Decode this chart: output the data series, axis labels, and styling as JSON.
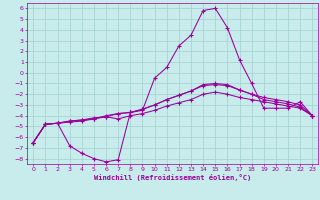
{
  "background_color": "#c8ecec",
  "grid_color": "#aad4d4",
  "line_color": "#990099",
  "marker": "+",
  "xlabel": "Windchill (Refroidissement éolien,°C)",
  "xlim": [
    -0.5,
    23.5
  ],
  "ylim": [
    -8.5,
    6.5
  ],
  "xticks": [
    0,
    1,
    2,
    3,
    4,
    5,
    6,
    7,
    8,
    9,
    10,
    11,
    12,
    13,
    14,
    15,
    16,
    17,
    18,
    19,
    20,
    21,
    22,
    23
  ],
  "yticks": [
    6,
    5,
    4,
    3,
    2,
    1,
    0,
    -1,
    -2,
    -3,
    -4,
    -5,
    -6,
    -7,
    -8
  ],
  "line1_x": [
    0,
    1,
    2,
    3,
    4,
    5,
    6,
    7,
    8,
    9,
    10,
    11,
    12,
    13,
    14,
    15,
    16,
    17,
    18,
    19,
    20,
    21,
    22,
    23
  ],
  "line1_y": [
    -6.5,
    -4.8,
    -4.7,
    -6.8,
    -7.5,
    -8.0,
    -8.3,
    -8.1,
    -3.7,
    -3.5,
    -0.5,
    0.5,
    2.5,
    3.5,
    5.8,
    6.0,
    4.2,
    1.2,
    -1.0,
    -3.3,
    -3.3,
    -3.3,
    -2.7,
    -4.0
  ],
  "line2_x": [
    0,
    1,
    2,
    3,
    4,
    5,
    6,
    7,
    8,
    9,
    10,
    11,
    12,
    13,
    14,
    15,
    16,
    17,
    18,
    19,
    20,
    21,
    22,
    23
  ],
  "line2_y": [
    -6.5,
    -4.8,
    -4.7,
    -4.6,
    -4.5,
    -4.3,
    -4.0,
    -3.8,
    -3.7,
    -3.4,
    -3.0,
    -2.5,
    -2.1,
    -1.7,
    -1.2,
    -1.1,
    -1.2,
    -1.6,
    -2.0,
    -2.3,
    -2.5,
    -2.7,
    -3.0,
    -4.0
  ],
  "line3_x": [
    0,
    1,
    2,
    3,
    4,
    5,
    6,
    7,
    8,
    9,
    10,
    11,
    12,
    13,
    14,
    15,
    16,
    17,
    18,
    19,
    20,
    21,
    22,
    23
  ],
  "line3_y": [
    -6.5,
    -4.8,
    -4.7,
    -4.5,
    -4.4,
    -4.3,
    -4.1,
    -3.8,
    -3.7,
    -3.4,
    -3.0,
    -2.5,
    -2.1,
    -1.7,
    -1.1,
    -1.0,
    -1.1,
    -1.6,
    -2.0,
    -2.5,
    -2.7,
    -2.9,
    -3.2,
    -4.0
  ],
  "line4_x": [
    0,
    1,
    2,
    3,
    4,
    5,
    6,
    7,
    8,
    9,
    10,
    11,
    12,
    13,
    14,
    15,
    16,
    17,
    18,
    19,
    20,
    21,
    22,
    23
  ],
  "line4_y": [
    -6.5,
    -4.8,
    -4.7,
    -4.5,
    -4.4,
    -4.2,
    -4.1,
    -4.3,
    -4.0,
    -3.8,
    -3.5,
    -3.1,
    -2.8,
    -2.5,
    -2.0,
    -1.8,
    -2.0,
    -2.3,
    -2.5,
    -2.7,
    -2.9,
    -3.1,
    -3.3,
    -4.0
  ]
}
